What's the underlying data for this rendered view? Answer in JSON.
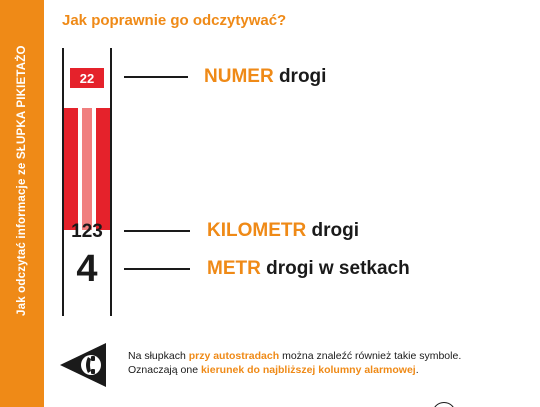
{
  "sidebar": {
    "text": "Jak odczytać informacje ze SŁUPKA PIKIETAŻO"
  },
  "heading": "Jak poprawnie go odczytywać?",
  "post": {
    "road_number": "22",
    "kilometer": "123",
    "meter": "4"
  },
  "callouts": {
    "number": {
      "highlight": "NUMER",
      "rest": " drogi"
    },
    "kilometer": {
      "highlight": "KILOMETR",
      "rest": " drogi"
    },
    "meter": {
      "highlight": "METR",
      "rest": " drogi w setkach"
    }
  },
  "note": {
    "line1_a": "Na słupkach ",
    "line1_hl": "przy autostradach",
    "line1_b": " można znaleźć również takie symbole.",
    "line2_a": "Oznaczają one ",
    "line2_hl": "kierunek do najbliższej kolumny alarmowej",
    "line2_b": "."
  },
  "colors": {
    "accent": "#ef8a17",
    "red": "#e5222b",
    "light_red": "#f07f7f",
    "ink": "#1a1a1a"
  },
  "icons": {
    "symbol": "phone-direction-triangle-icon"
  }
}
